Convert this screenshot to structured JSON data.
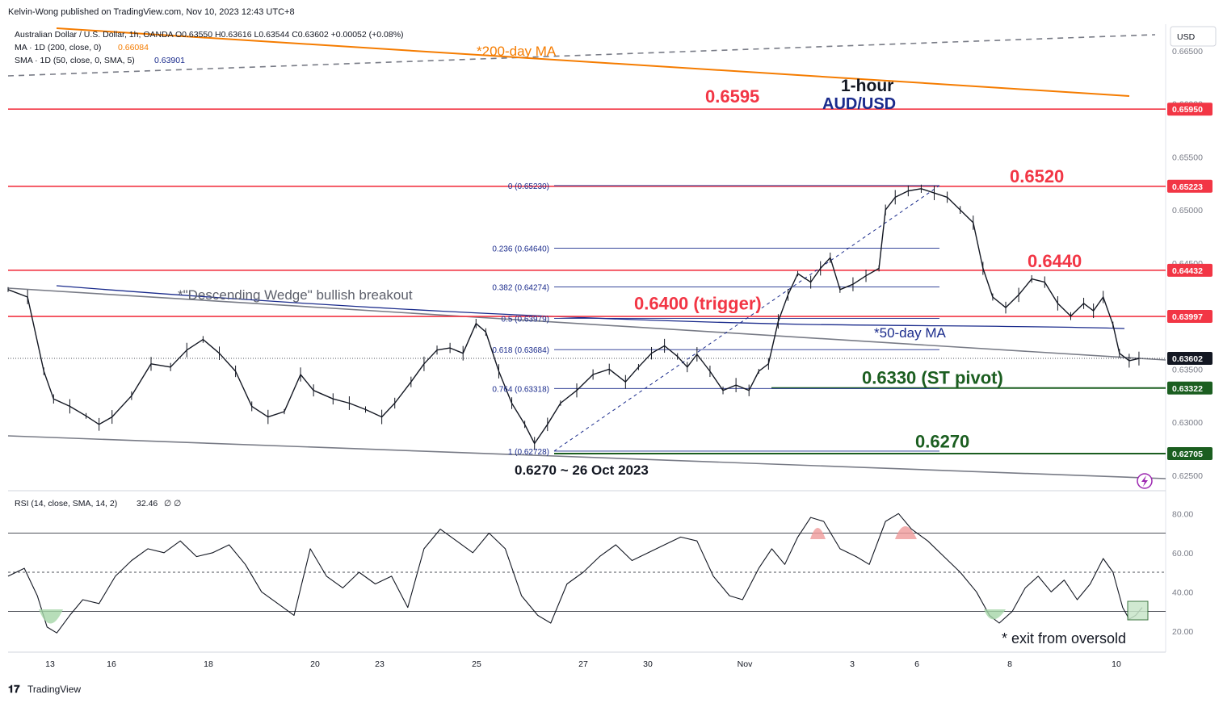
{
  "header": {
    "publisher": "Kelvin-Wong published on TradingView.com, Nov 10, 2023 12:43 UTC+8",
    "symbol_line": "Australian Dollar / U.S. Dollar, 1h, OANDA  O0.63550 H0.63616 L0.63544 C0.63602 +0.00052 (+0.08%)",
    "ma_line_label": "MA · 1D (200, close, 0)",
    "ma_line_value": "0.66084",
    "sma_line_label": "SMA · 1D (50, close, 0, SMA, 5)",
    "sma_line_value": "0.63901",
    "currency": "USD"
  },
  "footer": {
    "brand": "TradingView"
  },
  "colors": {
    "red": "#f23645",
    "green": "#1b5e20",
    "orange": "#f57c00",
    "navy": "#1a2b8c",
    "gray": "#787b86",
    "grid": "#e0e3eb"
  },
  "chart_data": [
    {
      "type": "line",
      "title": "1-hour",
      "subtitle": "AUD/USD",
      "x_ticks": [
        "13",
        "16",
        "18",
        "20",
        "23",
        "25",
        "27",
        "30",
        "Nov",
        "3",
        "6",
        "8",
        "10"
      ],
      "y_ticks": [
        "0.66500",
        "0.66000",
        "0.65500",
        "0.65000",
        "0.64500",
        "0.63500",
        "0.63000",
        "0.62500"
      ],
      "ylim": [
        0.6237,
        0.6675
      ],
      "price_tags": [
        {
          "value": 0.6595,
          "label": "0.65950",
          "color": "#f23645"
        },
        {
          "value": 0.65223,
          "label": "0.65223",
          "color": "#f23645"
        },
        {
          "value": 0.64432,
          "label": "0.64432",
          "color": "#f23645"
        },
        {
          "value": 0.63997,
          "label": "0.63997",
          "color": "#f23645"
        },
        {
          "value": 0.63602,
          "label": "0.63602",
          "color": "#131722"
        },
        {
          "value": 0.63322,
          "label": "0.63322",
          "color": "#1b5e20"
        },
        {
          "value": 0.62705,
          "label": "0.62705",
          "color": "#1b5e20"
        }
      ],
      "level_labels": [
        {
          "text": "0.6595",
          "value": 0.6595,
          "color": "#f23645"
        },
        {
          "text": "0.6520",
          "value": 0.652,
          "color": "#f23645"
        },
        {
          "text": "0.6440",
          "value": 0.644,
          "color": "#f23645"
        },
        {
          "text": "0.6400 (trigger)",
          "value": 0.64,
          "color": "#f23645"
        },
        {
          "text": "0.6330 (ST pivot)",
          "value": 0.633,
          "color": "#1b5e20"
        },
        {
          "text": "0.6270",
          "value": 0.627,
          "color": "#1b5e20"
        }
      ],
      "fib_levels": [
        {
          "label": "0 (0.65230)",
          "value": 0.6523
        },
        {
          "label": "0.236 (0.64640)",
          "value": 0.6464
        },
        {
          "label": "0.382 (0.64274)",
          "value": 0.64274
        },
        {
          "label": "0.5 (0.63979)",
          "value": 0.63979
        },
        {
          "label": "0.618 (0.63684)",
          "value": 0.63684
        },
        {
          "label": "0.764 (0.63318)",
          "value": 0.63318
        },
        {
          "label": "1 (0.62728)",
          "value": 0.62728
        }
      ],
      "annotations": [
        "*200-day MA",
        "*\"Descending Wedge\" bullish breakout",
        "*50-day MA",
        "0.6270 ~ 26 Oct 2023"
      ],
      "price_path": [
        {
          "x": 0,
          "y": 0.6425
        },
        {
          "x": 12,
          "y": 0.6418
        },
        {
          "x": 22,
          "y": 0.6348
        },
        {
          "x": 28,
          "y": 0.6322
        },
        {
          "x": 38,
          "y": 0.6315
        },
        {
          "x": 48,
          "y": 0.6306
        },
        {
          "x": 56,
          "y": 0.6298
        },
        {
          "x": 64,
          "y": 0.6305
        },
        {
          "x": 76,
          "y": 0.6325
        },
        {
          "x": 88,
          "y": 0.6355
        },
        {
          "x": 100,
          "y": 0.6352
        },
        {
          "x": 110,
          "y": 0.6368
        },
        {
          "x": 120,
          "y": 0.6378
        },
        {
          "x": 130,
          "y": 0.6365
        },
        {
          "x": 140,
          "y": 0.6348
        },
        {
          "x": 150,
          "y": 0.6315
        },
        {
          "x": 160,
          "y": 0.6305
        },
        {
          "x": 170,
          "y": 0.631
        },
        {
          "x": 180,
          "y": 0.6345
        },
        {
          "x": 188,
          "y": 0.633
        },
        {
          "x": 200,
          "y": 0.6322
        },
        {
          "x": 210,
          "y": 0.6318
        },
        {
          "x": 220,
          "y": 0.6312
        },
        {
          "x": 230,
          "y": 0.6305
        },
        {
          "x": 238,
          "y": 0.6318
        },
        {
          "x": 248,
          "y": 0.6338
        },
        {
          "x": 256,
          "y": 0.6355
        },
        {
          "x": 264,
          "y": 0.6368
        },
        {
          "x": 272,
          "y": 0.637
        },
        {
          "x": 280,
          "y": 0.6365
        },
        {
          "x": 288,
          "y": 0.6393
        },
        {
          "x": 294,
          "y": 0.6385
        },
        {
          "x": 302,
          "y": 0.6348
        },
        {
          "x": 310,
          "y": 0.6318
        },
        {
          "x": 318,
          "y": 0.6298
        },
        {
          "x": 324,
          "y": 0.628
        },
        {
          "x": 332,
          "y": 0.6298
        },
        {
          "x": 340,
          "y": 0.6318
        },
        {
          "x": 350,
          "y": 0.633
        },
        {
          "x": 360,
          "y": 0.6345
        },
        {
          "x": 370,
          "y": 0.635
        },
        {
          "x": 380,
          "y": 0.6338
        },
        {
          "x": 388,
          "y": 0.6352
        },
        {
          "x": 396,
          "y": 0.6365
        },
        {
          "x": 404,
          "y": 0.6372
        },
        {
          "x": 412,
          "y": 0.6362
        },
        {
          "x": 418,
          "y": 0.6352
        },
        {
          "x": 424,
          "y": 0.6364
        },
        {
          "x": 432,
          "y": 0.6348
        },
        {
          "x": 440,
          "y": 0.633
        },
        {
          "x": 448,
          "y": 0.6335
        },
        {
          "x": 456,
          "y": 0.633
        },
        {
          "x": 462,
          "y": 0.6348
        },
        {
          "x": 468,
          "y": 0.6355
        },
        {
          "x": 474,
          "y": 0.6395
        },
        {
          "x": 480,
          "y": 0.642
        },
        {
          "x": 486,
          "y": 0.644
        },
        {
          "x": 494,
          "y": 0.6432
        },
        {
          "x": 500,
          "y": 0.6445
        },
        {
          "x": 506,
          "y": 0.6455
        },
        {
          "x": 512,
          "y": 0.6425
        },
        {
          "x": 520,
          "y": 0.643
        },
        {
          "x": 528,
          "y": 0.6438
        },
        {
          "x": 536,
          "y": 0.6445
        },
        {
          "x": 540,
          "y": 0.65
        },
        {
          "x": 546,
          "y": 0.6512
        },
        {
          "x": 554,
          "y": 0.6518
        },
        {
          "x": 562,
          "y": 0.652
        },
        {
          "x": 570,
          "y": 0.6516
        },
        {
          "x": 578,
          "y": 0.6512
        },
        {
          "x": 586,
          "y": 0.65
        },
        {
          "x": 594,
          "y": 0.6488
        },
        {
          "x": 600,
          "y": 0.6445
        },
        {
          "x": 606,
          "y": 0.6418
        },
        {
          "x": 614,
          "y": 0.6408
        },
        {
          "x": 622,
          "y": 0.642
        },
        {
          "x": 630,
          "y": 0.6435
        },
        {
          "x": 638,
          "y": 0.6432
        },
        {
          "x": 646,
          "y": 0.6412
        },
        {
          "x": 654,
          "y": 0.64
        },
        {
          "x": 662,
          "y": 0.6412
        },
        {
          "x": 668,
          "y": 0.6405
        },
        {
          "x": 674,
          "y": 0.6418
        },
        {
          "x": 680,
          "y": 0.6392
        },
        {
          "x": 684,
          "y": 0.6365
        },
        {
          "x": 690,
          "y": 0.6358
        },
        {
          "x": 696,
          "y": 0.636
        }
      ],
      "rsi": {
        "label": "RSI (14, close, SMA, 14, 2)",
        "value": "32.46",
        "extra": "∅ ∅",
        "y_ticks": [
          "80.00",
          "60.00",
          "40.00",
          "20.00"
        ],
        "ylim": [
          10,
          90
        ],
        "levels": [
          70,
          50,
          30
        ],
        "note": "* exit from oversold",
        "path": [
          {
            "x": 0,
            "y": 48
          },
          {
            "x": 10,
            "y": 52
          },
          {
            "x": 18,
            "y": 38
          },
          {
            "x": 24,
            "y": 22
          },
          {
            "x": 30,
            "y": 19
          },
          {
            "x": 38,
            "y": 28
          },
          {
            "x": 46,
            "y": 36
          },
          {
            "x": 56,
            "y": 34
          },
          {
            "x": 66,
            "y": 48
          },
          {
            "x": 76,
            "y": 56
          },
          {
            "x": 86,
            "y": 62
          },
          {
            "x": 96,
            "y": 60
          },
          {
            "x": 106,
            "y": 66
          },
          {
            "x": 116,
            "y": 58
          },
          {
            "x": 126,
            "y": 60
          },
          {
            "x": 136,
            "y": 64
          },
          {
            "x": 146,
            "y": 54
          },
          {
            "x": 156,
            "y": 40
          },
          {
            "x": 166,
            "y": 34
          },
          {
            "x": 176,
            "y": 28
          },
          {
            "x": 186,
            "y": 62
          },
          {
            "x": 196,
            "y": 48
          },
          {
            "x": 206,
            "y": 42
          },
          {
            "x": 216,
            "y": 50
          },
          {
            "x": 226,
            "y": 44
          },
          {
            "x": 236,
            "y": 48
          },
          {
            "x": 246,
            "y": 32
          },
          {
            "x": 256,
            "y": 62
          },
          {
            "x": 266,
            "y": 72
          },
          {
            "x": 276,
            "y": 66
          },
          {
            "x": 286,
            "y": 60
          },
          {
            "x": 296,
            "y": 70
          },
          {
            "x": 306,
            "y": 62
          },
          {
            "x": 316,
            "y": 38
          },
          {
            "x": 326,
            "y": 28
          },
          {
            "x": 334,
            "y": 24
          },
          {
            "x": 344,
            "y": 44
          },
          {
            "x": 354,
            "y": 50
          },
          {
            "x": 364,
            "y": 58
          },
          {
            "x": 374,
            "y": 64
          },
          {
            "x": 384,
            "y": 56
          },
          {
            "x": 394,
            "y": 60
          },
          {
            "x": 404,
            "y": 64
          },
          {
            "x": 414,
            "y": 68
          },
          {
            "x": 424,
            "y": 66
          },
          {
            "x": 434,
            "y": 48
          },
          {
            "x": 444,
            "y": 38
          },
          {
            "x": 452,
            "y": 36
          },
          {
            "x": 462,
            "y": 52
          },
          {
            "x": 470,
            "y": 62
          },
          {
            "x": 478,
            "y": 54
          },
          {
            "x": 486,
            "y": 68
          },
          {
            "x": 494,
            "y": 78
          },
          {
            "x": 502,
            "y": 76
          },
          {
            "x": 512,
            "y": 62
          },
          {
            "x": 522,
            "y": 58
          },
          {
            "x": 530,
            "y": 54
          },
          {
            "x": 540,
            "y": 76
          },
          {
            "x": 548,
            "y": 80
          },
          {
            "x": 556,
            "y": 72
          },
          {
            "x": 566,
            "y": 66
          },
          {
            "x": 576,
            "y": 58
          },
          {
            "x": 586,
            "y": 50
          },
          {
            "x": 596,
            "y": 40
          },
          {
            "x": 604,
            "y": 28
          },
          {
            "x": 610,
            "y": 24
          },
          {
            "x": 618,
            "y": 30
          },
          {
            "x": 626,
            "y": 42
          },
          {
            "x": 634,
            "y": 48
          },
          {
            "x": 642,
            "y": 40
          },
          {
            "x": 650,
            "y": 46
          },
          {
            "x": 658,
            "y": 36
          },
          {
            "x": 666,
            "y": 44
          },
          {
            "x": 674,
            "y": 57
          },
          {
            "x": 680,
            "y": 50
          },
          {
            "x": 686,
            "y": 32
          },
          {
            "x": 690,
            "y": 26
          },
          {
            "x": 694,
            "y": 28
          },
          {
            "x": 698,
            "y": 32
          }
        ]
      }
    }
  ]
}
